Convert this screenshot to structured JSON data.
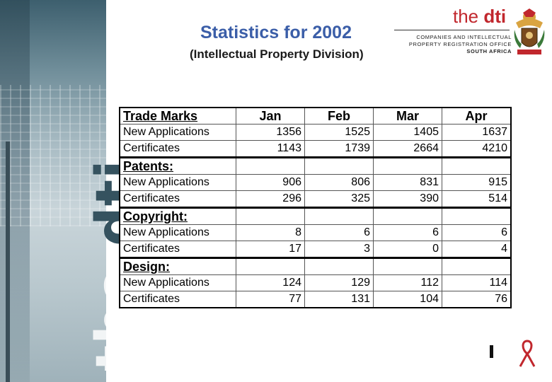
{
  "header": {
    "title": "Statistics for 2002",
    "subtitle": "(Intellectual Property Division)",
    "logo_the": "the ",
    "logo_dti": "dti",
    "org_line1": "COMPANIES AND INTELLECTUAL",
    "org_line2": "PROPERTY REGISTRATION OFFICE",
    "org_line3": "SOUTH AFRICA"
  },
  "side_logo": {
    "the": "the ",
    "dti": "dti"
  },
  "table": {
    "columns": [
      "Trade Marks",
      "Jan",
      "Feb",
      "Mar",
      "Apr"
    ],
    "sections": [
      {
        "heading": "",
        "rows": [
          {
            "label": "New Applications",
            "values": [
              "1356",
              "1525",
              "1405",
              "1637"
            ]
          },
          {
            "label": "Certificates",
            "values": [
              "1143",
              "1739",
              "2664",
              "4210"
            ]
          }
        ]
      },
      {
        "heading": "Patents:",
        "rows": [
          {
            "label": "New Applications",
            "values": [
              "906",
              "806",
              "831",
              "915"
            ]
          },
          {
            "label": "Certificates",
            "values": [
              "296",
              "325",
              "390",
              "514"
            ]
          }
        ]
      },
      {
        "heading": "Copyright:",
        "rows": [
          {
            "label": "New Applications",
            "values": [
              "8",
              "6",
              "6",
              "6"
            ]
          },
          {
            "label": "Certificates",
            "values": [
              "17",
              "3",
              "0",
              "4"
            ]
          }
        ]
      },
      {
        "heading": "Design:",
        "rows": [
          {
            "label": "New Applications",
            "values": [
              "124",
              "129",
              "112",
              "114"
            ]
          },
          {
            "label": "Certificates",
            "values": [
              "77",
              "131",
              "104",
              "76"
            ]
          }
        ]
      }
    ]
  },
  "colors": {
    "title_blue": "#3b5ea8",
    "brand_red": "#c1272d",
    "band_dark": "#35525f"
  }
}
